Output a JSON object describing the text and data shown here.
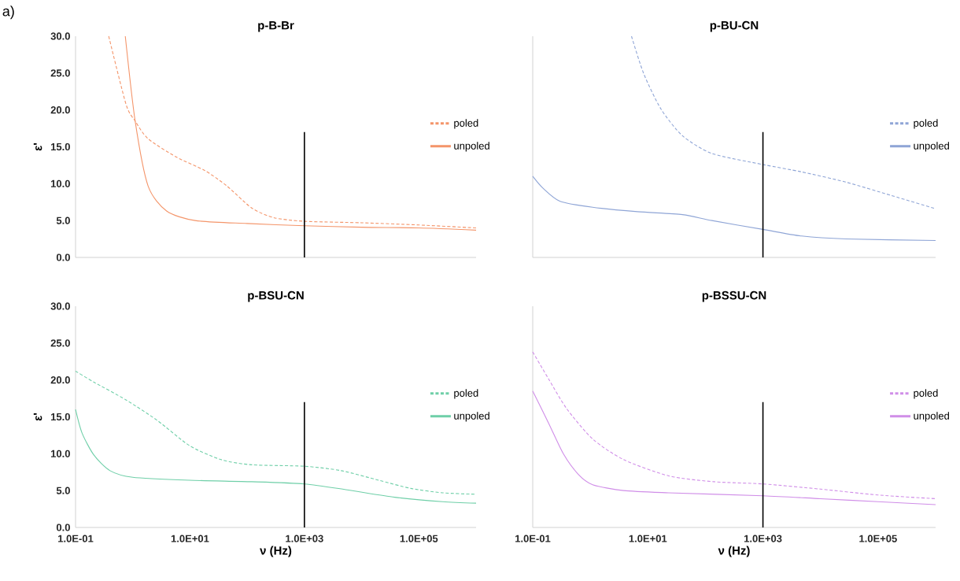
{
  "chart_data": [
    {
      "type": "line",
      "title": "p-B-Br",
      "ylabel": "ε'",
      "log": "x",
      "legend": "right",
      "tick_labels": "y",
      "annotations": [
        "a)"
      ],
      "xlim": [
        0.1,
        1000000
      ],
      "ylim": [
        0,
        30
      ],
      "yticks": [
        {
          "value": 0,
          "label": "0.0"
        },
        {
          "value": 5,
          "label": "5.0"
        },
        {
          "value": 10,
          "label": "10.0"
        },
        {
          "value": 15,
          "label": "15.0"
        },
        {
          "value": 20,
          "label": "20.0"
        },
        {
          "value": 25,
          "label": "25.0"
        },
        {
          "value": 30,
          "label": "30.0"
        }
      ],
      "series": [
        {
          "name": "poled",
          "color": "#f4956a",
          "line_style": "dashed",
          "x": [
            0.38,
            0.76,
            1.1,
            1.85,
            5.8,
            18,
            44,
            120,
            290,
            1000,
            10000,
            100000,
            1000000
          ],
          "values": [
            30,
            20.8,
            18.5,
            16.1,
            13.6,
            11.8,
            9.7,
            6.7,
            5.4,
            4.9,
            4.7,
            4.4,
            4.0
          ]
        },
        {
          "name": "unpoled",
          "color": "#f4956a",
          "line_style": "solid",
          "x": [
            0.74,
            1.1,
            1.85,
            3.9,
            12.3,
            100,
            1000,
            10000,
            100000,
            1000000
          ],
          "values": [
            30,
            18.5,
            9.7,
            6.3,
            5.0,
            4.6,
            4.3,
            4.1,
            4.0,
            3.7
          ]
        },
        {
          "color": "#000000",
          "line_style": "solid",
          "x": [
            1000,
            1000
          ],
          "values": [
            0,
            17
          ]
        }
      ]
    },
    {
      "type": "line",
      "title": "p-BU-CN",
      "log": "x",
      "legend": "right",
      "tick_labels": false,
      "xlim": [
        0.1,
        1000000
      ],
      "ylim": [
        0,
        30
      ],
      "series": [
        {
          "name": "poled",
          "color": "#8fa5d6",
          "line_style": "dashed",
          "x": [
            5.2,
            8.5,
            17,
            40,
            130,
            1000,
            4700,
            28000,
            170000,
            1000000
          ],
          "values": [
            30,
            24.9,
            20.1,
            16.5,
            14.1,
            12.6,
            11.6,
            10.2,
            8.4,
            6.6
          ]
        },
        {
          "name": "unpoled",
          "color": "#8fa5d6",
          "line_style": "solid",
          "x": [
            0.1,
            0.15,
            0.3,
            1.1,
            6.6,
            40,
            130,
            1000,
            4700,
            28000,
            1000000
          ],
          "values": [
            11.0,
            9.4,
            7.6,
            6.8,
            6.2,
            5.8,
            5.0,
            3.8,
            2.9,
            2.5,
            2.3
          ]
        },
        {
          "color": "#000000",
          "line_style": "solid",
          "x": [
            1000,
            1000
          ],
          "values": [
            0,
            17
          ]
        }
      ]
    },
    {
      "type": "line",
      "title": "p-BSU-CN",
      "ylabel": "ε'",
      "xlabel": "ν (Hz)",
      "log": "x",
      "legend": "right",
      "xlim": [
        0.1,
        1000000
      ],
      "ylim": [
        0,
        30
      ],
      "xticks": [
        {
          "value": 0.1,
          "label": "1.0E-01"
        },
        {
          "value": 10,
          "label": "1.0E+01"
        },
        {
          "value": 1000,
          "label": "1.0E+03"
        },
        {
          "value": 100000,
          "label": "1.0E+05"
        }
      ],
      "yticks": [
        {
          "value": 0,
          "label": "0.0"
        },
        {
          "value": 5,
          "label": "5.0"
        },
        {
          "value": 10,
          "label": "10.0"
        },
        {
          "value": 15,
          "label": "15.0"
        },
        {
          "value": 20,
          "label": "20.0"
        },
        {
          "value": 25,
          "label": "25.0"
        },
        {
          "value": 30,
          "label": "30.0"
        }
      ],
      "series": [
        {
          "name": "poled",
          "color": "#6fcfa8",
          "line_style": "dashed",
          "x": [
            0.1,
            0.21,
            0.76,
            2.7,
            9.8,
            35,
            120,
            1000,
            4400,
            20000,
            72000,
            260000,
            1000000
          ],
          "values": [
            21.2,
            19.7,
            17.3,
            14.5,
            11.1,
            9.2,
            8.5,
            8.3,
            7.7,
            6.4,
            5.3,
            4.7,
            4.5
          ]
        },
        {
          "name": "unpoled",
          "color": "#6fcfa8",
          "line_style": "solid",
          "x": [
            0.1,
            0.13,
            0.21,
            0.4,
            1.0,
            9.8,
            120,
            1000,
            5600,
            38000,
            260000,
            1000000
          ],
          "values": [
            16.0,
            12.8,
            9.8,
            7.7,
            6.8,
            6.4,
            6.2,
            5.9,
            5.1,
            4.1,
            3.5,
            3.3
          ]
        },
        {
          "color": "#000000",
          "line_style": "solid",
          "x": [
            1000,
            1000
          ],
          "values": [
            0,
            17
          ]
        }
      ]
    },
    {
      "type": "line",
      "title": "p-BSSU-CN",
      "xlabel": "ν (Hz)",
      "log": "x",
      "legend": "right",
      "tick_labels": "x",
      "xlim": [
        0.1,
        1000000
      ],
      "ylim": [
        0,
        30
      ],
      "xticks": [
        {
          "value": 0.1,
          "label": "1.0E-01"
        },
        {
          "value": 10,
          "label": "1.0E+01"
        },
        {
          "value": 1000,
          "label": "1.0E+03"
        },
        {
          "value": 100000,
          "label": "1.0E+05"
        }
      ],
      "series": [
        {
          "name": "poled",
          "color": "#d08ee8",
          "line_style": "dashed",
          "x": [
            0.1,
            0.19,
            0.39,
            1.1,
            3.8,
            23,
            140,
            1000,
            10000,
            100000,
            1000000
          ],
          "values": [
            23.8,
            20.1,
            16.1,
            12.0,
            9.2,
            7.0,
            6.2,
            5.9,
            5.2,
            4.4,
            3.9
          ]
        },
        {
          "name": "unpoled",
          "color": "#d08ee8",
          "line_style": "solid",
          "x": [
            0.1,
            0.19,
            0.34,
            0.62,
            1.1,
            3.8,
            23,
            1000,
            10000,
            100000,
            1000000
          ],
          "values": [
            18.5,
            14.1,
            10.0,
            7.2,
            5.8,
            5.0,
            4.7,
            4.3,
            3.9,
            3.5,
            3.1
          ]
        },
        {
          "color": "#000000",
          "line_style": "solid",
          "x": [
            1000,
            1000
          ],
          "values": [
            0,
            17
          ]
        }
      ]
    }
  ]
}
